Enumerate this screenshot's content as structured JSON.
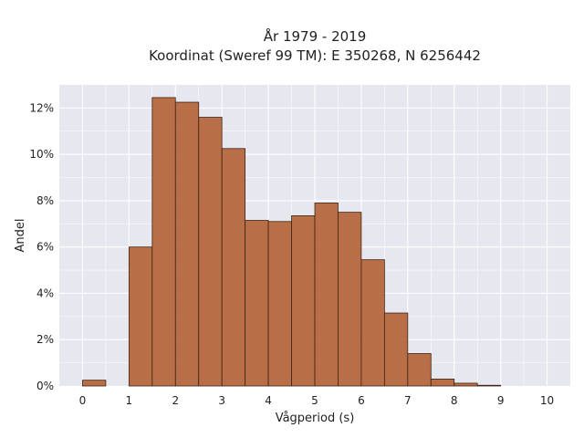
{
  "chart_data": {
    "type": "bar",
    "title": "År 1979 - 2019",
    "subtitle": "Koordinat (Sweref 99 TM): E 350268, N 6256442",
    "xlabel": "Vågperiod (s)",
    "ylabel": "Andel",
    "xlim": [
      -0.5,
      10.5
    ],
    "ylim": [
      0,
      13.0
    ],
    "x_ticks": [
      0,
      1,
      2,
      3,
      4,
      5,
      6,
      7,
      8,
      9,
      10
    ],
    "y_ticks": [
      {
        "value": 0,
        "label": "0%"
      },
      {
        "value": 2,
        "label": "2%"
      },
      {
        "value": 4,
        "label": "4%"
      },
      {
        "value": 6,
        "label": "6%"
      },
      {
        "value": 8,
        "label": "8%"
      },
      {
        "value": 10,
        "label": "10%"
      },
      {
        "value": 12,
        "label": "12%"
      }
    ],
    "bin_width": 0.5,
    "bins": [
      {
        "x0": 0.0,
        "value": 0.25
      },
      {
        "x0": 0.5,
        "value": 0.0
      },
      {
        "x0": 1.0,
        "value": 6.0
      },
      {
        "x0": 1.5,
        "value": 12.45
      },
      {
        "x0": 2.0,
        "value": 12.25
      },
      {
        "x0": 2.5,
        "value": 11.6
      },
      {
        "x0": 3.0,
        "value": 10.25
      },
      {
        "x0": 3.5,
        "value": 7.15
      },
      {
        "x0": 4.0,
        "value": 7.1
      },
      {
        "x0": 4.5,
        "value": 7.35
      },
      {
        "x0": 5.0,
        "value": 7.9
      },
      {
        "x0": 5.5,
        "value": 7.5
      },
      {
        "x0": 6.0,
        "value": 5.45
      },
      {
        "x0": 6.5,
        "value": 3.15
      },
      {
        "x0": 7.0,
        "value": 1.4
      },
      {
        "x0": 7.5,
        "value": 0.3
      },
      {
        "x0": 8.0,
        "value": 0.12
      },
      {
        "x0": 8.5,
        "value": 0.03
      }
    ],
    "grid": true,
    "colors": {
      "bar_fill": "#b5683d",
      "bar_edge": "#3d2416",
      "plot_bg": "#e7e7f0",
      "grid": "#ffffff"
    }
  }
}
